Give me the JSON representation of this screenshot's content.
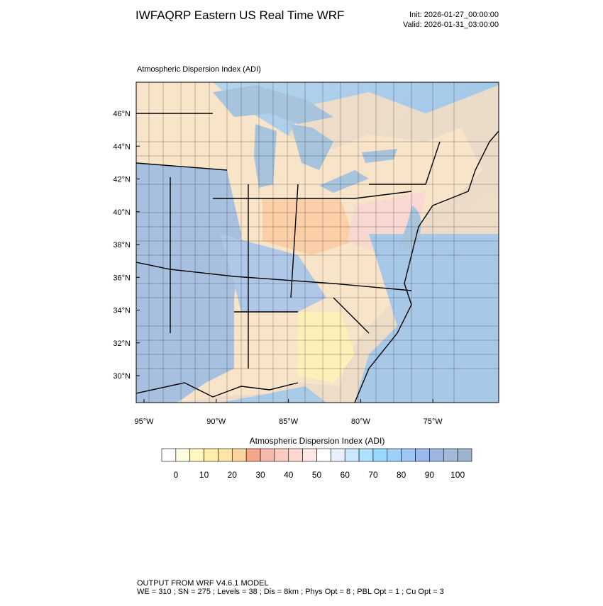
{
  "header": {
    "title": "IWFAQRP Eastern US Real Time WRF",
    "init": "Init: 2026-01-27_00:00:00",
    "valid": "Valid: 2026-01-31_03:00:00"
  },
  "map": {
    "title": "Atmospheric Dispersion Index   (ADI)",
    "lat_labels": [
      "46°N",
      "44°N",
      "42°N",
      "40°N",
      "38°N",
      "36°N",
      "34°N",
      "32°N",
      "30°N"
    ],
    "lon_labels": [
      "95°W",
      "90°W",
      "85°W",
      "80°W",
      "75°W"
    ]
  },
  "colorbar": {
    "title": "Atmospheric Dispersion Index  (ADI)",
    "labels": [
      "0",
      "10",
      "20",
      "30",
      "40",
      "50",
      "60",
      "70",
      "80",
      "90",
      "100"
    ],
    "colors": [
      "#ffffff",
      "#fffde0",
      "#fff6c0",
      "#ffeeaa",
      "#ffe4a8",
      "#fcd4a0",
      "#f4a68a",
      "#f6b8aa",
      "#f8cac0",
      "#fad8d0",
      "#fce8e4",
      "#ffffff",
      "#e8f0ff",
      "#cce8ff",
      "#b0e0ff",
      "#9ad8ff",
      "#a0d0f8",
      "#a0c4f4",
      "#9cb8ec",
      "#a0b4e0",
      "#a4b8d8",
      "#9eb4cc"
    ]
  },
  "footer": {
    "line1": "OUTPUT FROM WRF V4.6.1 MODEL",
    "line2": "WE = 310 ; SN = 275 ; Levels = 38 ; Dis = 8km ; Phys Opt = 8 ; PBL Opt = 1 ; Cu Opt = 3"
  }
}
